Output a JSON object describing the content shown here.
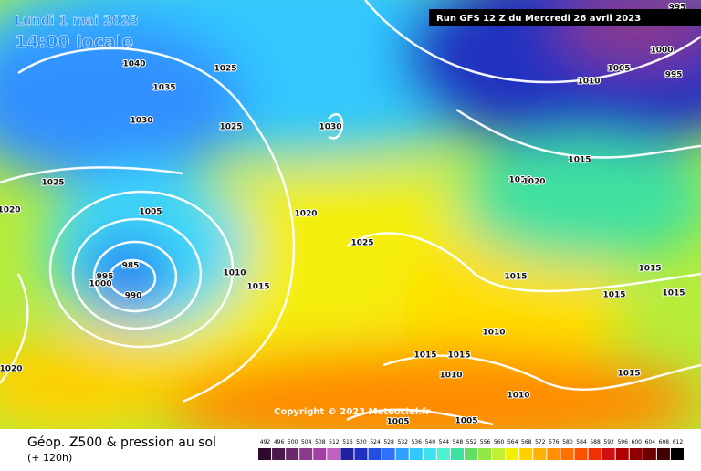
{
  "header": {
    "date": "Lundi 1 mai 2023",
    "time": "14:00 locale",
    "run": "Run GFS 12 Z du Mercredi 26 avril 2023"
  },
  "map": {
    "copyright": "Copyright © 2023 Meteociel.fr",
    "isobar_labels": [
      "1040",
      "1035",
      "1025",
      "1030",
      "1025",
      "1030",
      "1025",
      "1020",
      "1005",
      "1020",
      "1025",
      "985",
      "995",
      "1000",
      "990",
      "1010",
      "1015",
      "1020",
      "1005",
      "1000",
      "995",
      "1010",
      "1015",
      "1010",
      "1020",
      "1015",
      "1015",
      "1015",
      "1015",
      "1010",
      "1015",
      "1015",
      "1010",
      "1015",
      "1010",
      "1005",
      "1005",
      "995"
    ]
  },
  "footer": {
    "title": "Géop. Z500 & pression au sol",
    "lead": "(+ 120h)"
  },
  "legend": {
    "labels": [
      "492",
      "496",
      "500",
      "504",
      "508",
      "512",
      "516",
      "520",
      "524",
      "528",
      "532",
      "536",
      "540",
      "544",
      "548",
      "552",
      "556",
      "560",
      "564",
      "568",
      "572",
      "576",
      "580",
      "584",
      "588",
      "592",
      "596",
      "600",
      "604",
      "608",
      "612"
    ],
    "colors": [
      "#2d0a2d",
      "#4b1a4b",
      "#6a2a6a",
      "#8a3a8a",
      "#a040a0",
      "#c060c0",
      "#2020a0",
      "#2030c0",
      "#2050e0",
      "#3070ff",
      "#30a0ff",
      "#30c8ff",
      "#40e0f0",
      "#50f0d0",
      "#40e0a0",
      "#60e060",
      "#90e840",
      "#c0f030",
      "#f0f000",
      "#ffd000",
      "#ffb000",
      "#ff9000",
      "#ff7000",
      "#ff5000",
      "#f03000",
      "#d01010",
      "#b00000",
      "#900000",
      "#700000",
      "#400000",
      "#000000"
    ]
  }
}
